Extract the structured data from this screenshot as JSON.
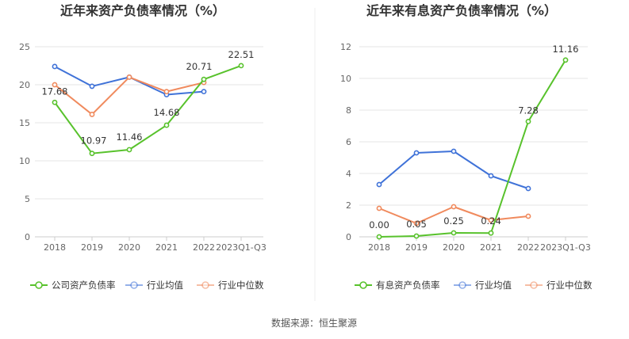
{
  "source": "数据来源：恒生聚源",
  "colors": {
    "company": "#58c22c",
    "industry_avg": "#3f72d8",
    "industry_median": "#f08a5d",
    "grid": "#e6e6e6",
    "axis": "#cccccc",
    "divider": "#eeeeee"
  },
  "chart_data": [
    {
      "type": "line",
      "title": "近年来资产负债率情况（%）",
      "categories": [
        "2018",
        "2019",
        "2020",
        "2021",
        "2022",
        "2023Q1-Q3"
      ],
      "ylim": [
        0,
        25
      ],
      "yticks": [
        0,
        5,
        10,
        15,
        20,
        25
      ],
      "grid": true,
      "legend_position": "bottom",
      "series": [
        {
          "name": "公司资产负债率",
          "key": "company",
          "values": [
            17.68,
            10.97,
            11.46,
            14.68,
            20.71,
            22.51
          ],
          "labels": [
            "17.68",
            "10.97",
            "11.46",
            "14.68",
            "20.71",
            "22.51"
          ]
        },
        {
          "name": "行业均值",
          "key": "industry_avg",
          "values": [
            22.4,
            19.8,
            21.0,
            18.7,
            19.1,
            null
          ]
        },
        {
          "name": "行业中位数",
          "key": "industry_median",
          "values": [
            20.0,
            16.1,
            21.0,
            19.1,
            20.3,
            null
          ]
        }
      ]
    },
    {
      "type": "line",
      "title": "近年来有息资产负债率情况（%）",
      "categories": [
        "2018",
        "2019",
        "2020",
        "2021",
        "2022",
        "2023Q1-Q3"
      ],
      "ylim": [
        0,
        12
      ],
      "yticks": [
        0,
        2,
        4,
        6,
        8,
        10,
        12
      ],
      "grid": true,
      "legend_position": "bottom",
      "series": [
        {
          "name": "有息资产负债率",
          "key": "company",
          "values": [
            0.0,
            0.05,
            0.25,
            0.24,
            7.28,
            11.16
          ],
          "labels": [
            "0.00",
            "0.05",
            "0.25",
            "0.24",
            "7.28",
            "11.16"
          ]
        },
        {
          "name": "行业均值",
          "key": "industry_avg",
          "values": [
            3.3,
            5.3,
            5.4,
            3.85,
            3.05,
            null
          ]
        },
        {
          "name": "行业中位数",
          "key": "industry_median",
          "values": [
            1.8,
            0.85,
            1.9,
            1.05,
            1.3,
            null
          ]
        }
      ]
    }
  ]
}
